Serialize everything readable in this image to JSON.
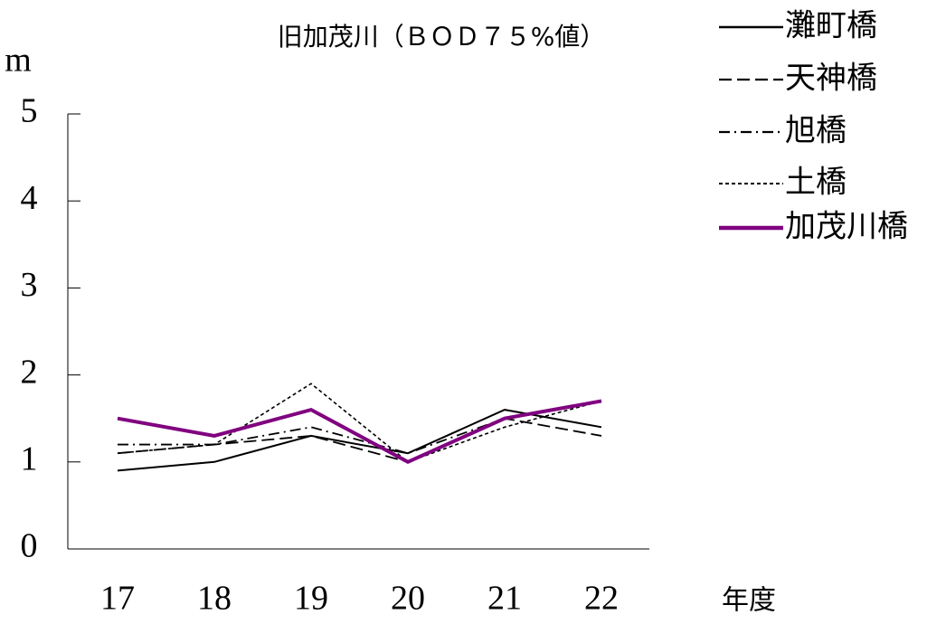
{
  "chart_data": {
    "type": "line",
    "title": "旧加茂川（ＢＯＤ７５%値）",
    "y_label": "m",
    "x_label": "年度",
    "categories": [
      "17",
      "18",
      "19",
      "20",
      "21",
      "22"
    ],
    "ylim": [
      0,
      5
    ],
    "yticks": [
      0,
      1,
      2,
      3,
      4,
      5
    ],
    "grid": false,
    "legend": "right",
    "series": [
      {
        "name": "灘町橋",
        "color": "#000000",
        "style": "solid",
        "values": [
          0.9,
          1.0,
          1.3,
          1.1,
          1.6,
          1.4
        ]
      },
      {
        "name": "天神橋",
        "color": "#000000",
        "style": "dashed",
        "values": [
          1.1,
          1.2,
          1.3,
          1.0,
          1.5,
          1.3
        ]
      },
      {
        "name": "旭橋",
        "color": "#000000",
        "style": "dashdot",
        "values": [
          1.2,
          1.2,
          1.4,
          1.1,
          1.5,
          1.7
        ]
      },
      {
        "name": "土橋",
        "color": "#000000",
        "style": "dotted",
        "values": [
          1.1,
          1.2,
          1.9,
          1.0,
          1.4,
          1.7
        ]
      },
      {
        "name": "加茂川橋",
        "color": "#800080",
        "style": "bold",
        "values": [
          1.5,
          1.3,
          1.6,
          1.0,
          1.5,
          1.7
        ]
      }
    ]
  }
}
